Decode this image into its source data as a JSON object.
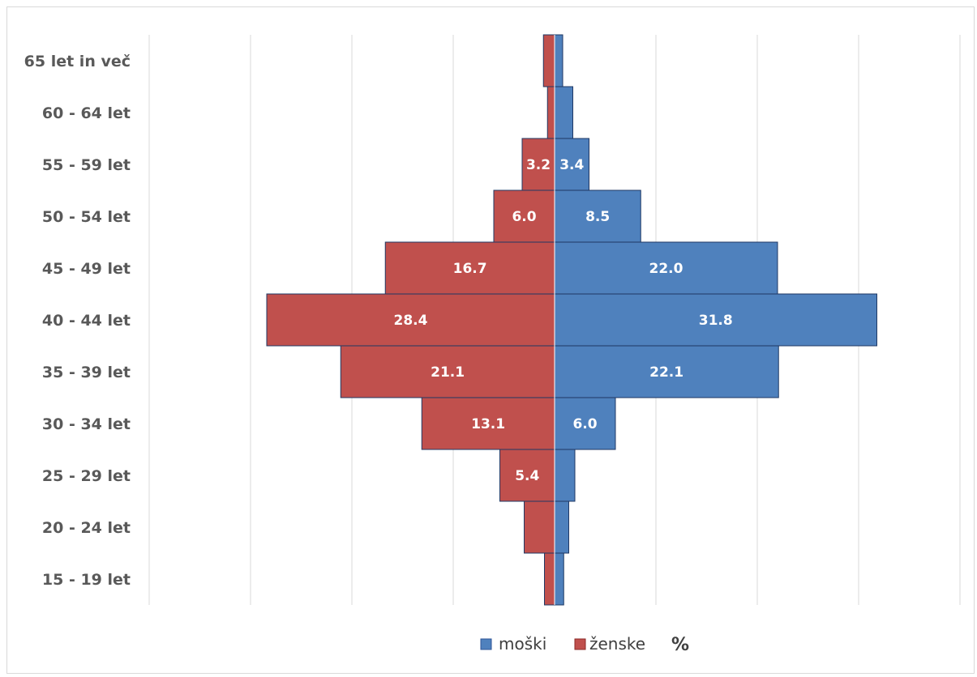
{
  "chart_data": {
    "type": "bar",
    "subtype": "population-pyramid",
    "orientation": "horizontal",
    "categories": [
      "65 let in več",
      "60 - 64 let",
      "55 - 59 let",
      "50 - 54 let",
      "45 - 49 let",
      "40 - 44 let",
      "35 - 39 let",
      "30 - 34 let",
      "25 - 29 let",
      "20 - 24 let",
      "15 - 19 let"
    ],
    "series": [
      {
        "name": "moški",
        "color": "#4f81bd",
        "values": [
          0.8,
          1.8,
          3.4,
          8.5,
          22.0,
          31.8,
          22.1,
          6.0,
          2.0,
          1.4,
          0.9
        ],
        "labels": [
          "",
          "",
          "3.4",
          "8.5",
          "22.0",
          "31.8",
          "22.1",
          "6.0",
          "",
          "",
          ""
        ]
      },
      {
        "name": "ženske",
        "color": "#c0504d",
        "values": [
          1.1,
          0.7,
          3.2,
          6.0,
          16.7,
          28.4,
          21.1,
          13.1,
          5.4,
          3.0,
          1.0
        ],
        "labels": [
          "",
          "",
          "3.2",
          "6.0",
          "16.7",
          "28.4",
          "21.1",
          "13.1",
          "5.4",
          "",
          ""
        ]
      }
    ],
    "unit": "%",
    "xlim": [
      -40,
      40
    ],
    "grid": true,
    "legend": "bottom-center"
  }
}
